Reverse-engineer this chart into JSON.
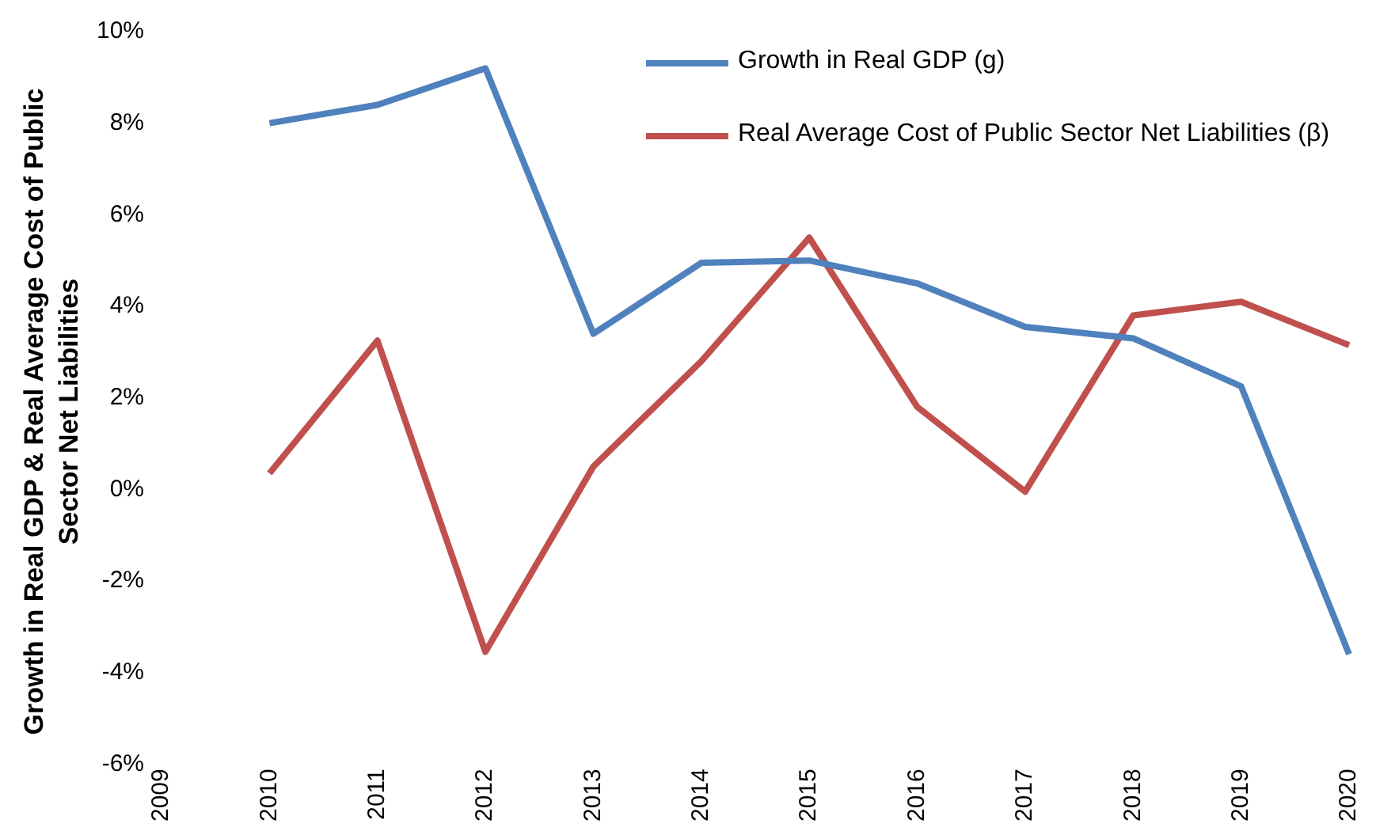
{
  "chart_data": {
    "type": "line",
    "ylabel": "Growth in Real GDP & Real Average Cost of Public Sector Net Liabilities",
    "categories": [
      "2009",
      "2010",
      "2011",
      "2012",
      "2013",
      "2014",
      "2015",
      "2016",
      "2017",
      "2018",
      "2019",
      "2020"
    ],
    "series": [
      {
        "name": "Growth in Real GDP (g)",
        "color": "#4f81bd",
        "values": [
          null,
          8.0,
          8.4,
          9.2,
          3.4,
          4.95,
          5.0,
          4.5,
          3.55,
          3.3,
          2.25,
          -3.6
        ]
      },
      {
        "name": "Real Average Cost of Public Sector Net Liabilities (β)",
        "color": "#c0504d",
        "values": [
          null,
          0.35,
          3.25,
          -3.55,
          0.5,
          2.8,
          5.5,
          1.8,
          -0.05,
          3.8,
          4.1,
          3.15
        ]
      }
    ],
    "ylim": [
      -6,
      10
    ],
    "yticks": [
      {
        "value": -6,
        "label": "-6%"
      },
      {
        "value": -4,
        "label": "-4%"
      },
      {
        "value": -2,
        "label": "-2%"
      },
      {
        "value": 0,
        "label": "0%"
      },
      {
        "value": 2,
        "label": "2%"
      },
      {
        "value": 4,
        "label": "4%"
      },
      {
        "value": 6,
        "label": "6%"
      },
      {
        "value": 8,
        "label": "8%"
      },
      {
        "value": 10,
        "label": "10%"
      }
    ],
    "grid": false,
    "legend": "top",
    "marker": "none",
    "line_style": "solid"
  }
}
